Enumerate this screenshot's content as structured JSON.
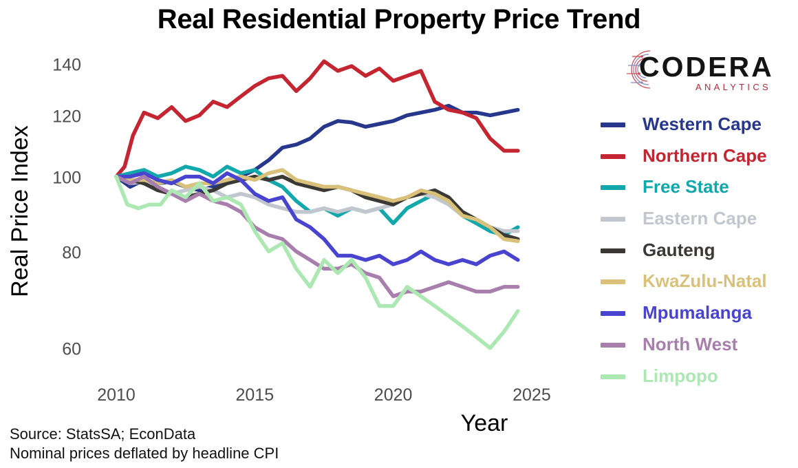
{
  "title": "Real Residential Property Price Trend",
  "source_lines": [
    "Source: StatsSA; EconData",
    "Nominal prices deflated by headline CPI"
  ],
  "logo": {
    "word": "CODERA",
    "sub": "ANALYTICS",
    "accent_color": "#b3293a"
  },
  "chart_data": {
    "type": "line",
    "title": "Real Residential Property Price Trend",
    "xlabel": "Year",
    "ylabel": "Real Price Index",
    "x_ticks": [
      2010,
      2015,
      2020,
      2025
    ],
    "y_ticks": [
      60,
      80,
      100,
      120,
      140
    ],
    "y_scale": "log",
    "xlim": [
      2009.9,
      2025.3
    ],
    "ylim": [
      56.5,
      146
    ],
    "grid": false,
    "legend_position": "right",
    "series": [
      {
        "name": "Western Cape",
        "color": "#27378c",
        "x": [
          2010,
          2010.5,
          2011,
          2011.5,
          2012,
          2012.5,
          2013,
          2013.5,
          2014,
          2014.5,
          2015,
          2015.5,
          2016,
          2016.5,
          2017,
          2017.5,
          2018,
          2018.5,
          2019,
          2019.5,
          2020,
          2020.5,
          2021,
          2021.5,
          2022,
          2022.5,
          2023,
          2023.5,
          2024,
          2024.5
        ],
        "y": [
          100,
          97,
          99,
          98,
          98.5,
          97,
          96,
          97,
          99,
          100,
          102,
          105,
          109,
          110,
          112,
          116,
          118,
          117.5,
          116,
          117,
          118,
          120,
          121,
          122,
          123.5,
          121,
          121,
          120,
          121,
          122
        ]
      },
      {
        "name": "Northern Cape",
        "color": "#c42530",
        "x": [
          2010,
          2010.3,
          2010.6,
          2011,
          2011.5,
          2012,
          2012.5,
          2013,
          2013.5,
          2014,
          2014.5,
          2015,
          2015.5,
          2016,
          2016.5,
          2017,
          2017.5,
          2018,
          2018.5,
          2019,
          2019.5,
          2020,
          2020.5,
          2021,
          2021.5,
          2022,
          2022.5,
          2023,
          2023.5,
          2024,
          2024.5
        ],
        "y": [
          100,
          103,
          113,
          121,
          119,
          123,
          118,
          120,
          125,
          123,
          127,
          131,
          134,
          135,
          129,
          134,
          141,
          137,
          139,
          135,
          138,
          133,
          135,
          137,
          125,
          122,
          121,
          119,
          112,
          108,
          108
        ]
      },
      {
        "name": "Free State",
        "color": "#11a7ab",
        "x": [
          2010,
          2010.5,
          2011,
          2011.5,
          2012,
          2012.5,
          2013,
          2013.5,
          2014,
          2014.5,
          2015,
          2015.5,
          2016,
          2016.5,
          2017,
          2017.5,
          2018,
          2018.5,
          2019,
          2019.5,
          2020,
          2020.5,
          2021,
          2021.5,
          2022,
          2022.5,
          2023,
          2023.5,
          2024,
          2024.5
        ],
        "y": [
          100,
          101,
          102,
          100,
          101,
          103,
          102,
          100,
          103,
          101,
          102,
          99,
          97,
          93,
          90,
          91,
          89,
          91,
          90,
          91,
          87,
          91,
          93,
          95,
          93,
          89,
          87,
          85,
          84,
          86
        ]
      },
      {
        "name": "Eastern Cape",
        "color": "#c2c6ce",
        "x": [
          2010,
          2010.5,
          2011,
          2011.5,
          2012,
          2012.5,
          2013,
          2013.5,
          2014,
          2014.5,
          2015,
          2015.5,
          2016,
          2016.5,
          2017,
          2017.5,
          2018,
          2018.5,
          2019,
          2019.5,
          2020,
          2020.5,
          2021,
          2021.5,
          2022,
          2022.5,
          2023,
          2023.5,
          2024,
          2024.5
        ],
        "y": [
          100,
          98,
          98.5,
          97,
          95,
          96,
          97,
          96,
          94,
          95,
          94,
          92,
          91,
          90,
          90,
          91,
          90,
          91,
          90,
          91,
          92,
          94,
          95,
          94,
          92,
          89,
          88,
          86,
          85,
          85
        ]
      },
      {
        "name": "Gauteng",
        "color": "#3b3935",
        "x": [
          2010,
          2010.5,
          2011,
          2011.5,
          2012,
          2012.5,
          2013,
          2013.5,
          2014,
          2014.5,
          2015,
          2015.5,
          2016,
          2016.5,
          2017,
          2017.5,
          2018,
          2018.5,
          2019,
          2019.5,
          2020,
          2020.5,
          2021,
          2021.5,
          2022,
          2022.5,
          2023,
          2023.5,
          2024,
          2024.5
        ],
        "y": [
          100,
          99,
          98,
          96,
          95,
          94,
          95,
          96,
          98,
          99,
          100,
          99,
          100,
          98,
          97,
          96,
          97,
          96,
          94,
          93,
          92,
          94,
          95,
          96,
          94,
          90,
          88,
          86,
          84,
          83
        ]
      },
      {
        "name": "KwaZulu-Natal",
        "color": "#d9c179",
        "x": [
          2010,
          2010.5,
          2011,
          2011.5,
          2012,
          2012.5,
          2013,
          2013.5,
          2014,
          2014.5,
          2015,
          2015.5,
          2016,
          2016.5,
          2017,
          2017.5,
          2018,
          2018.5,
          2019,
          2019.5,
          2020,
          2020.5,
          2021,
          2021.5,
          2022,
          2022.5,
          2023,
          2023.5,
          2024,
          2024.5
        ],
        "y": [
          100,
          99,
          99,
          98,
          99,
          97,
          98,
          98,
          99,
          100,
          99,
          101,
          102,
          99,
          98,
          97,
          97,
          96,
          95,
          94,
          93,
          94,
          96,
          95,
          93,
          89,
          88,
          86,
          83,
          82.5
        ]
      },
      {
        "name": "Mpumalanga",
        "color": "#4844cf",
        "x": [
          2010,
          2010.5,
          2011,
          2011.5,
          2012,
          2012.5,
          2013,
          2013.5,
          2014,
          2014.5,
          2015,
          2015.5,
          2016,
          2016.5,
          2017,
          2017.5,
          2018,
          2018.5,
          2019,
          2019.5,
          2020,
          2020.5,
          2021,
          2021.5,
          2022,
          2022.5,
          2023,
          2023.5,
          2024,
          2024.5
        ],
        "y": [
          100,
          100,
          101,
          99,
          98,
          100,
          100,
          98,
          101,
          99,
          95,
          93,
          94,
          88,
          86,
          83,
          79,
          79,
          78,
          79,
          77,
          78,
          80,
          78,
          77,
          78,
          77,
          79,
          80,
          78
        ]
      },
      {
        "name": "North West",
        "color": "#a87fac",
        "x": [
          2010,
          2010.5,
          2011,
          2011.5,
          2012,
          2012.5,
          2013,
          2013.5,
          2014,
          2014.5,
          2015,
          2015.5,
          2016,
          2016.5,
          2017,
          2017.5,
          2018,
          2018.5,
          2019,
          2019.5,
          2020,
          2020.5,
          2021,
          2021.5,
          2022,
          2022.5,
          2023,
          2023.5,
          2024,
          2024.5
        ],
        "y": [
          100,
          98,
          100,
          97,
          95,
          93,
          95,
          93,
          92,
          90,
          86,
          84,
          83,
          80,
          78,
          76,
          76,
          77,
          75,
          74,
          70,
          71,
          71,
          72,
          73,
          72,
          71,
          71,
          72,
          72
        ]
      },
      {
        "name": "Limpopo",
        "color": "#ace8b2",
        "x": [
          2010,
          2010.4,
          2010.8,
          2011.2,
          2011.6,
          2012,
          2012.5,
          2013,
          2013.5,
          2014,
          2014.5,
          2015,
          2015.5,
          2016,
          2016.5,
          2017,
          2017.5,
          2018,
          2018.5,
          2019,
          2019.5,
          2020,
          2020.5,
          2021,
          2021.5,
          2022,
          2022.5,
          2023,
          2023.5,
          2024,
          2024.5
        ],
        "y": [
          100,
          92,
          91,
          92,
          92,
          96,
          94,
          98,
          93,
          94,
          92,
          85,
          80,
          82,
          76,
          72,
          78,
          75,
          78,
          74,
          68,
          68,
          72,
          70,
          68,
          66,
          64,
          62,
          60,
          63,
          67
        ]
      }
    ]
  }
}
